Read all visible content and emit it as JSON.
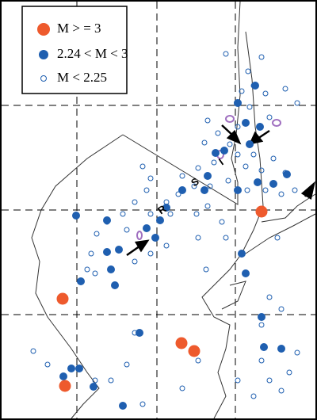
{
  "legend": {
    "items": [
      {
        "label": "M > = 3"
      },
      {
        "label": "2.24 < M < 3"
      },
      {
        "label": "M < 2.25"
      }
    ]
  },
  "labels": [
    "R",
    "S",
    "I"
  ]
}
